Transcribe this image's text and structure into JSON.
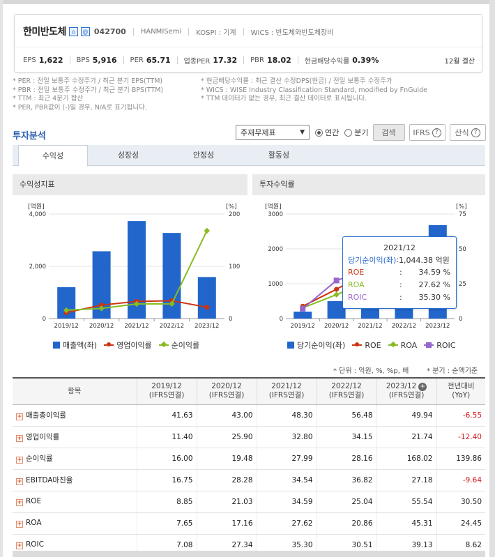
{
  "company": {
    "name": "한미반도체",
    "code": "042700",
    "eng_name": "HANMISemi",
    "market": "KOSPI : 기계",
    "wics": "WICS : 반도체와반도체장비"
  },
  "metrics": [
    {
      "label": "EPS",
      "value": "1,622"
    },
    {
      "label": "BPS",
      "value": "5,916"
    },
    {
      "label": "PER",
      "value": "65.71"
    },
    {
      "label": "업종PER",
      "value": "17.32"
    },
    {
      "label": "PBR",
      "value": "18.02"
    },
    {
      "label": "현금배당수익률",
      "value": "0.39%"
    }
  ],
  "settlement": "12월 결산",
  "notes_left": [
    "* PER : 전일 보통주 수정주가 / 최근 분기 EPS(TTM)",
    "* PBR : 전일 보통주 수정주가 / 최근 분기 BPS(TTM)",
    "* TTM : 최근 4분기 합산",
    "* PER, PBR값이 (-)일 경우, N/A로 표기됩니다."
  ],
  "notes_right": [
    "* 현금배당수익률 : 최근 결산 수정DPS(현금) / 전일 보통주 수정주가",
    "* WICS : WISE Industry Classification Standard, modified by FnGuide",
    "* TTM 데이터가 없는 경우, 최근 결산 데이터로 표시됩니다."
  ],
  "section_title": "투자분석",
  "controls": {
    "select_value": "주재무제표",
    "radio_annual": "연간",
    "radio_quarter": "분기",
    "search": "검색",
    "ifrs": "IFRS",
    "calc": "산식"
  },
  "tabs": [
    "수익성",
    "성장성",
    "안정성",
    "활동성"
  ],
  "panel_a_title": "수익성지표",
  "panel_b_title": "투자수익률",
  "chart_data": [
    {
      "type": "bar",
      "title": "수익성지표",
      "categories": [
        "2019/12",
        "2020/12",
        "2021/12",
        "2022/12",
        "2023/12"
      ],
      "left_axis_unit": "[억원]",
      "right_axis_unit": "[%]",
      "left_ylim": [
        0,
        4000
      ],
      "left_ticks": [
        "0",
        "2,000",
        "4,000"
      ],
      "right_ylim": [
        0,
        200
      ],
      "right_ticks": [
        "0",
        "100",
        "200"
      ],
      "series": [
        {
          "name": "매출액(좌)",
          "kind": "bar",
          "axis": "left",
          "color": "#2266cc",
          "values": [
            1200,
            2575,
            3730,
            3276,
            1590
          ]
        },
        {
          "name": "영업이익률",
          "kind": "line",
          "axis": "right",
          "color": "#cc3311",
          "values": [
            11.4,
            25.9,
            32.8,
            34.15,
            21.74
          ]
        },
        {
          "name": "순이익률",
          "kind": "line",
          "axis": "right",
          "color": "#88bb22",
          "values": [
            16.0,
            19.48,
            27.99,
            28.16,
            168.02
          ]
        }
      ]
    },
    {
      "type": "bar",
      "title": "투자수익률",
      "categories": [
        "2019/12",
        "2020/12",
        "2021/12",
        "2022/12",
        "2023/12"
      ],
      "left_axis_unit": "[억원]",
      "right_axis_unit": "[%]",
      "left_ylim": [
        0,
        3000
      ],
      "left_ticks": [
        "0",
        "1000",
        "2000",
        "3000"
      ],
      "right_ylim": [
        0,
        75
      ],
      "right_ticks": [
        "0",
        "25",
        "50",
        "75"
      ],
      "series": [
        {
          "name": "당기순이익(좌)",
          "kind": "bar",
          "axis": "left",
          "color": "#2266cc",
          "values": [
            200,
            500,
            1044.38,
            920,
            2680
          ]
        },
        {
          "name": "ROE",
          "kind": "line",
          "axis": "right",
          "color": "#cc3311",
          "values": [
            8.85,
            21.03,
            34.59,
            25.04,
            55.54
          ]
        },
        {
          "name": "ROA",
          "kind": "line",
          "axis": "right",
          "color": "#88bb22",
          "values": [
            7.65,
            17.16,
            27.62,
            20.86,
            45.31
          ]
        },
        {
          "name": "ROIC",
          "kind": "line",
          "axis": "right",
          "color": "#9966cc",
          "values": [
            7.08,
            27.34,
            35.3,
            30.51,
            39.13
          ]
        }
      ]
    }
  ],
  "tooltip": {
    "title": "2021/12",
    "rows": [
      {
        "name": "당기순이익(좌)",
        "value": "1,044.38 억원",
        "color": "#2266cc"
      },
      {
        "name": "ROE",
        "value": "34.59 %",
        "color": "#cc3311"
      },
      {
        "name": "ROA",
        "value": "27.62 %",
        "color": "#88bb22"
      },
      {
        "name": "ROIC",
        "value": "35.30 %",
        "color": "#9966cc"
      }
    ]
  },
  "unit_note": "* 단위 : 억원, %, %p, 배",
  "period_note": "* 분기 : 순액기준",
  "table": {
    "header_item": "항목",
    "years": [
      {
        "year": "2019/12",
        "basis": "(IFRS연결)"
      },
      {
        "year": "2020/12",
        "basis": "(IFRS연결)"
      },
      {
        "year": "2021/12",
        "basis": "(IFRS연결)"
      },
      {
        "year": "2022/12",
        "basis": "(IFRS연결)"
      },
      {
        "year": "2023/12",
        "basis": "(IFRS연결)"
      }
    ],
    "yoy_head": "전년대비",
    "yoy_sub": "(YoY)",
    "rows": [
      {
        "label": "매출총이익률",
        "values": [
          "41.63",
          "43.00",
          "48.30",
          "56.48",
          "49.94"
        ],
        "yoy": "-6.55",
        "neg": true
      },
      {
        "label": "영업이익률",
        "values": [
          "11.40",
          "25.90",
          "32.80",
          "34.15",
          "21.74"
        ],
        "yoy": "-12.40",
        "neg": true
      },
      {
        "label": "순이익률",
        "values": [
          "16.00",
          "19.48",
          "27.99",
          "28.16",
          "168.02"
        ],
        "yoy": "139.86",
        "neg": false
      },
      {
        "label": "EBITDA마진율",
        "values": [
          "16.75",
          "28.28",
          "34.54",
          "36.82",
          "27.18"
        ],
        "yoy": "-9.64",
        "neg": true
      },
      {
        "label": "ROE",
        "values": [
          "8.85",
          "21.03",
          "34.59",
          "25.04",
          "55.54"
        ],
        "yoy": "30.50",
        "neg": false
      },
      {
        "label": "ROA",
        "values": [
          "7.65",
          "17.16",
          "27.62",
          "20.86",
          "45.31"
        ],
        "yoy": "24.45",
        "neg": false
      },
      {
        "label": "ROIC",
        "values": [
          "7.08",
          "27.34",
          "35.30",
          "30.51",
          "39.13"
        ],
        "yoy": "8.62",
        "neg": false
      }
    ]
  }
}
